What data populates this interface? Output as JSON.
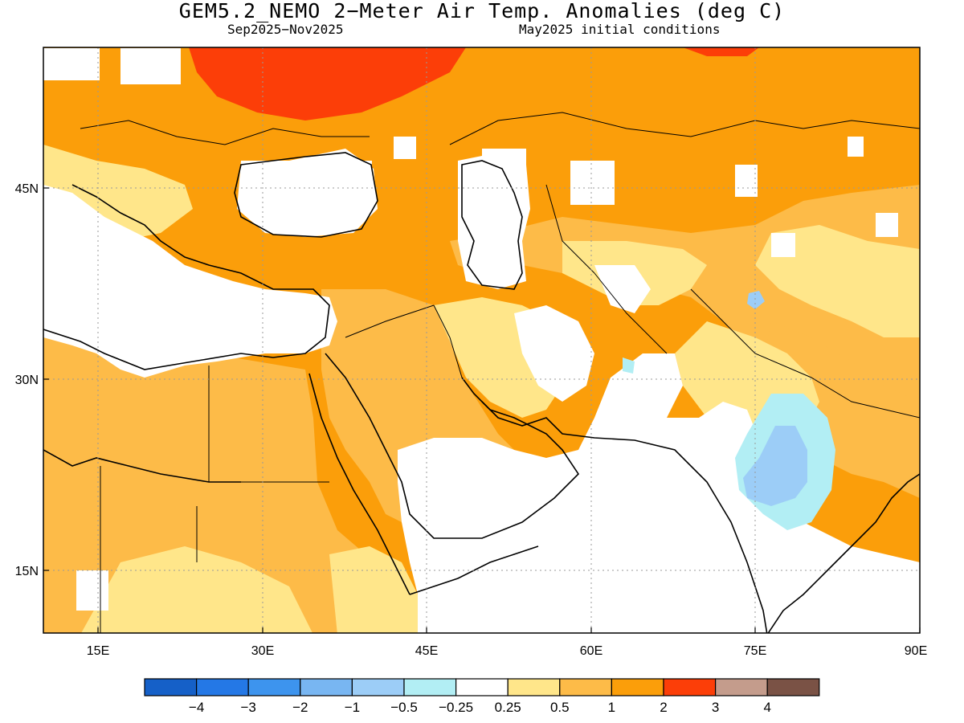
{
  "title": "GEM5.2_NEMO 2−Meter Air Temp. Anomalies (deg C)",
  "subtitle_left": "Sep2025−Nov2025",
  "subtitle_right": "May2025 initial conditions",
  "axes": {
    "lon_ticks": [
      "15E",
      "30E",
      "45E",
      "60E",
      "75E",
      "90E"
    ],
    "lat_ticks": [
      "45N",
      "30N",
      "15N"
    ],
    "lon_range": [
      10,
      90
    ],
    "lat_range": [
      10,
      56
    ]
  },
  "colorbar": {
    "colors": [
      "#1560c8",
      "#2478e6",
      "#3d94ee",
      "#78b6f2",
      "#9ccdf7",
      "#b2eef4",
      "#ffffff",
      "#ffe68a",
      "#fdbb48",
      "#fb9e0a",
      "#fc3e08",
      "#c49c8c",
      "#7a5245"
    ],
    "labels": [
      "−4",
      "−3",
      "−2",
      "−1",
      "−0.5",
      "−0.25",
      "0.25",
      "0.5",
      "1",
      "2",
      "3",
      "4"
    ]
  },
  "legend_colors": {
    "anomaly_3_plus": "#fc3e08",
    "anomaly_2_3": "#fb9e0a",
    "anomaly_1_2": "#fdbb48",
    "anomaly_05_1": "#ffe68a",
    "anomaly_neutral": "#ffffff",
    "anomaly_neg_025_05": "#b2eef4",
    "anomaly_neg_05_1": "#9ccdf7"
  }
}
